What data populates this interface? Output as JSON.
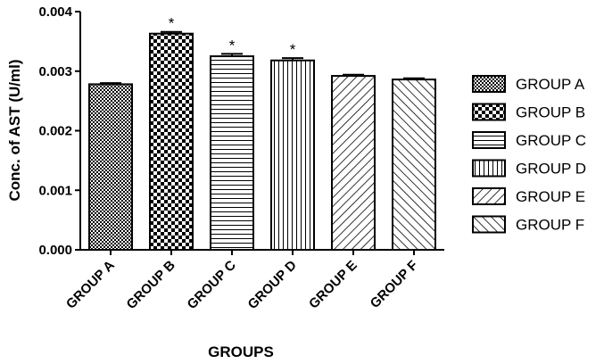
{
  "chart_data": {
    "type": "bar",
    "categories": [
      "GROUP A",
      "GROUP B",
      "GROUP C",
      "GROUP D",
      "GROUP E",
      "GROUP F"
    ],
    "values": [
      0.00278,
      0.00363,
      0.00325,
      0.00318,
      0.00292,
      0.00286
    ],
    "errors": [
      2e-05,
      3e-05,
      4e-05,
      4e-05,
      2e-05,
      2e-05
    ],
    "significance": [
      "",
      "*",
      "*",
      "*",
      "",
      ""
    ],
    "patterns": [
      "fine-checker",
      "coarse-checker",
      "horizontal-lines",
      "vertical-lines",
      "diagonal-up",
      "diagonal-down"
    ],
    "xlabel": "GROUPS",
    "ylabel": "Conc. of AST (U/ml)",
    "ylim": [
      0,
      0.004
    ],
    "yticks": [
      "0.000",
      "0.001",
      "0.002",
      "0.003",
      "0.004"
    ],
    "legend": {
      "position": "right",
      "entries": [
        "GROUP A",
        "GROUP B",
        "GROUP C",
        "GROUP D",
        "GROUP E",
        "GROUP F"
      ]
    },
    "grid": false,
    "colors": {
      "ink": "#000000",
      "background": "#ffffff"
    }
  }
}
